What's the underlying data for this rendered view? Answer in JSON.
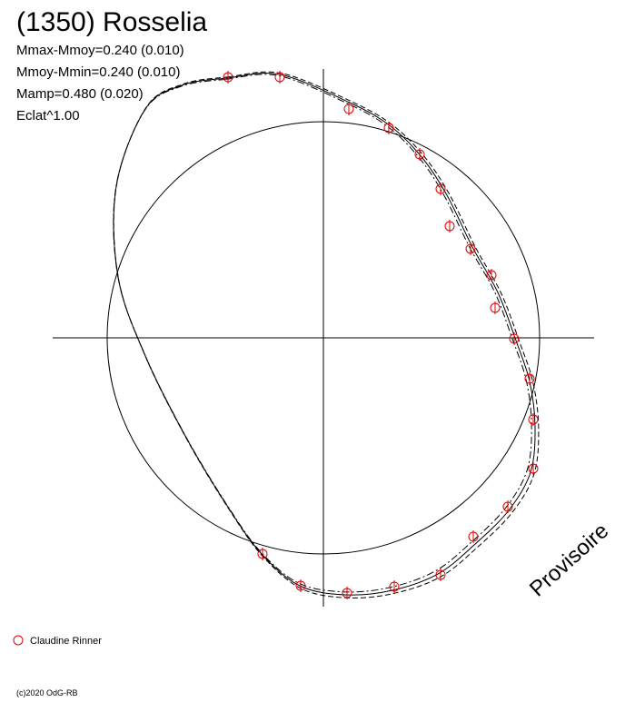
{
  "header": {
    "title": "(1350) Rosselia",
    "lines": [
      "Mmax-Mmoy=0.240 (0.010)",
      "Mmoy-Mmin=0.240 (0.010)",
      "Mamp=0.480 (0.020)",
      "Eclat^1.00"
    ]
  },
  "watermark": "Provisoire",
  "legend": {
    "entries": [
      "Claudine Rinner"
    ]
  },
  "footer": {
    "copyright": "(c)2020 OdG-RB"
  }
}
